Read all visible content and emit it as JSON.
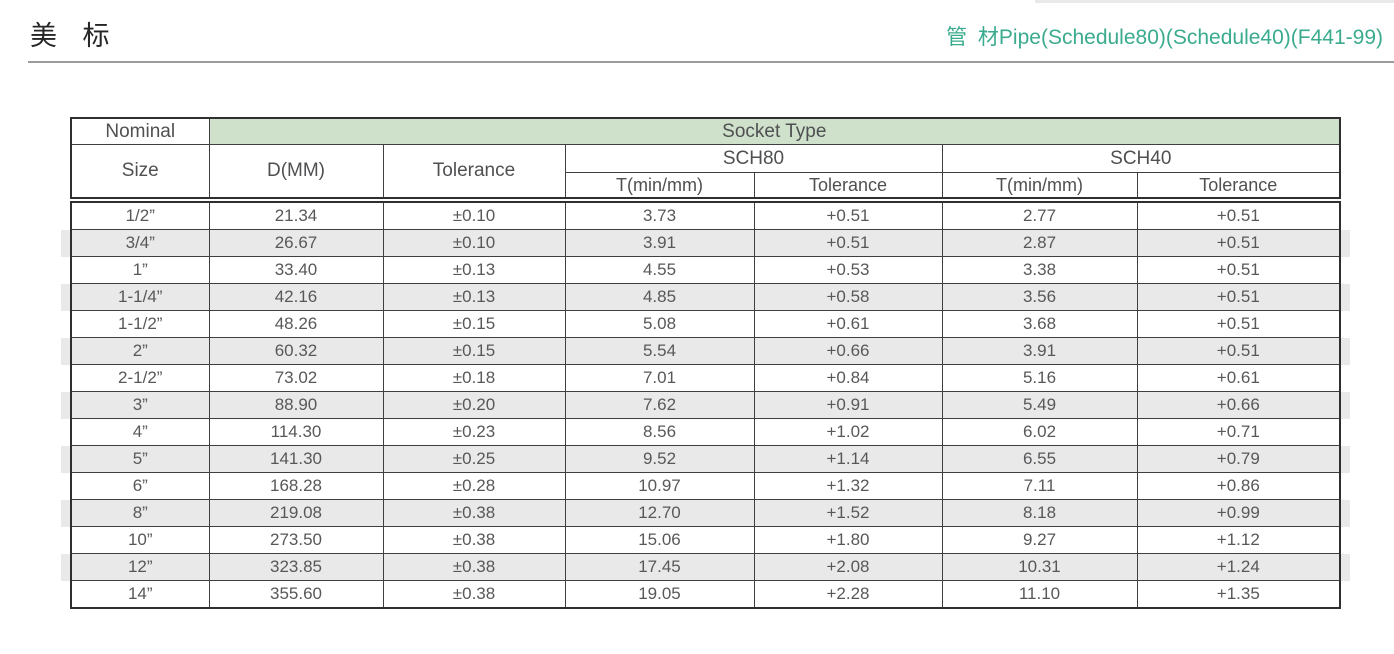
{
  "page": {
    "title": "美 标",
    "subtitle": "管 材Pipe(Schedule80)(Schedule40)(F441-99)",
    "accent_color": "#3aab8e",
    "header_fill": "#cfe1cb",
    "stripe_color": "#e9e9e9"
  },
  "table": {
    "header": {
      "nominal": "Nominal",
      "size": "Size",
      "socket_type": "Socket Type",
      "d_mm": "D(MM)",
      "tolerance": "Tolerance",
      "sch80": "SCH80",
      "sch40": "SCH40",
      "t_min": "T(min/mm)",
      "sub_tolerance": "Tolerance"
    },
    "rows": [
      {
        "size": "1/2”",
        "d": "21.34",
        "tol": "±0.10",
        "t80": "3.73",
        "tol80": "+0.51",
        "t40": "2.77",
        "tol40": "+0.51"
      },
      {
        "size": "3/4”",
        "d": "26.67",
        "tol": "±0.10",
        "t80": "3.91",
        "tol80": "+0.51",
        "t40": "2.87",
        "tol40": "+0.51"
      },
      {
        "size": "1”",
        "d": "33.40",
        "tol": "±0.13",
        "t80": "4.55",
        "tol80": "+0.53",
        "t40": "3.38",
        "tol40": "+0.51"
      },
      {
        "size": "1-1/4”",
        "d": "42.16",
        "tol": "±0.13",
        "t80": "4.85",
        "tol80": "+0.58",
        "t40": "3.56",
        "tol40": "+0.51"
      },
      {
        "size": "1-1/2”",
        "d": "48.26",
        "tol": "±0.15",
        "t80": "5.08",
        "tol80": "+0.61",
        "t40": "3.68",
        "tol40": "+0.51"
      },
      {
        "size": "2”",
        "d": "60.32",
        "tol": "±0.15",
        "t80": "5.54",
        "tol80": "+0.66",
        "t40": "3.91",
        "tol40": "+0.51"
      },
      {
        "size": "2-1/2”",
        "d": "73.02",
        "tol": "±0.18",
        "t80": "7.01",
        "tol80": "+0.84",
        "t40": "5.16",
        "tol40": "+0.61"
      },
      {
        "size": "3”",
        "d": "88.90",
        "tol": "±0.20",
        "t80": "7.62",
        "tol80": "+0.91",
        "t40": "5.49",
        "tol40": "+0.66"
      },
      {
        "size": "4”",
        "d": "114.30",
        "tol": "±0.23",
        "t80": "8.56",
        "tol80": "+1.02",
        "t40": "6.02",
        "tol40": "+0.71"
      },
      {
        "size": "5”",
        "d": "141.30",
        "tol": "±0.25",
        "t80": "9.52",
        "tol80": "+1.14",
        "t40": "6.55",
        "tol40": "+0.79"
      },
      {
        "size": "6”",
        "d": "168.28",
        "tol": "±0.28",
        "t80": "10.97",
        "tol80": "+1.32",
        "t40": "7.11",
        "tol40": "+0.86"
      },
      {
        "size": "8”",
        "d": "219.08",
        "tol": "±0.38",
        "t80": "12.70",
        "tol80": "+1.52",
        "t40": "8.18",
        "tol40": "+0.99"
      },
      {
        "size": "10”",
        "d": "273.50",
        "tol": "±0.38",
        "t80": "15.06",
        "tol80": "+1.80",
        "t40": "9.27",
        "tol40": "+1.12"
      },
      {
        "size": "12”",
        "d": "323.85",
        "tol": "±0.38",
        "t80": "17.45",
        "tol80": "+2.08",
        "t40": "10.31",
        "tol40": "+1.24"
      },
      {
        "size": "14”",
        "d": "355.60",
        "tol": "±0.38",
        "t80": "19.05",
        "tol80": "+2.28",
        "t40": "11.10",
        "tol40": "+1.35"
      }
    ]
  }
}
